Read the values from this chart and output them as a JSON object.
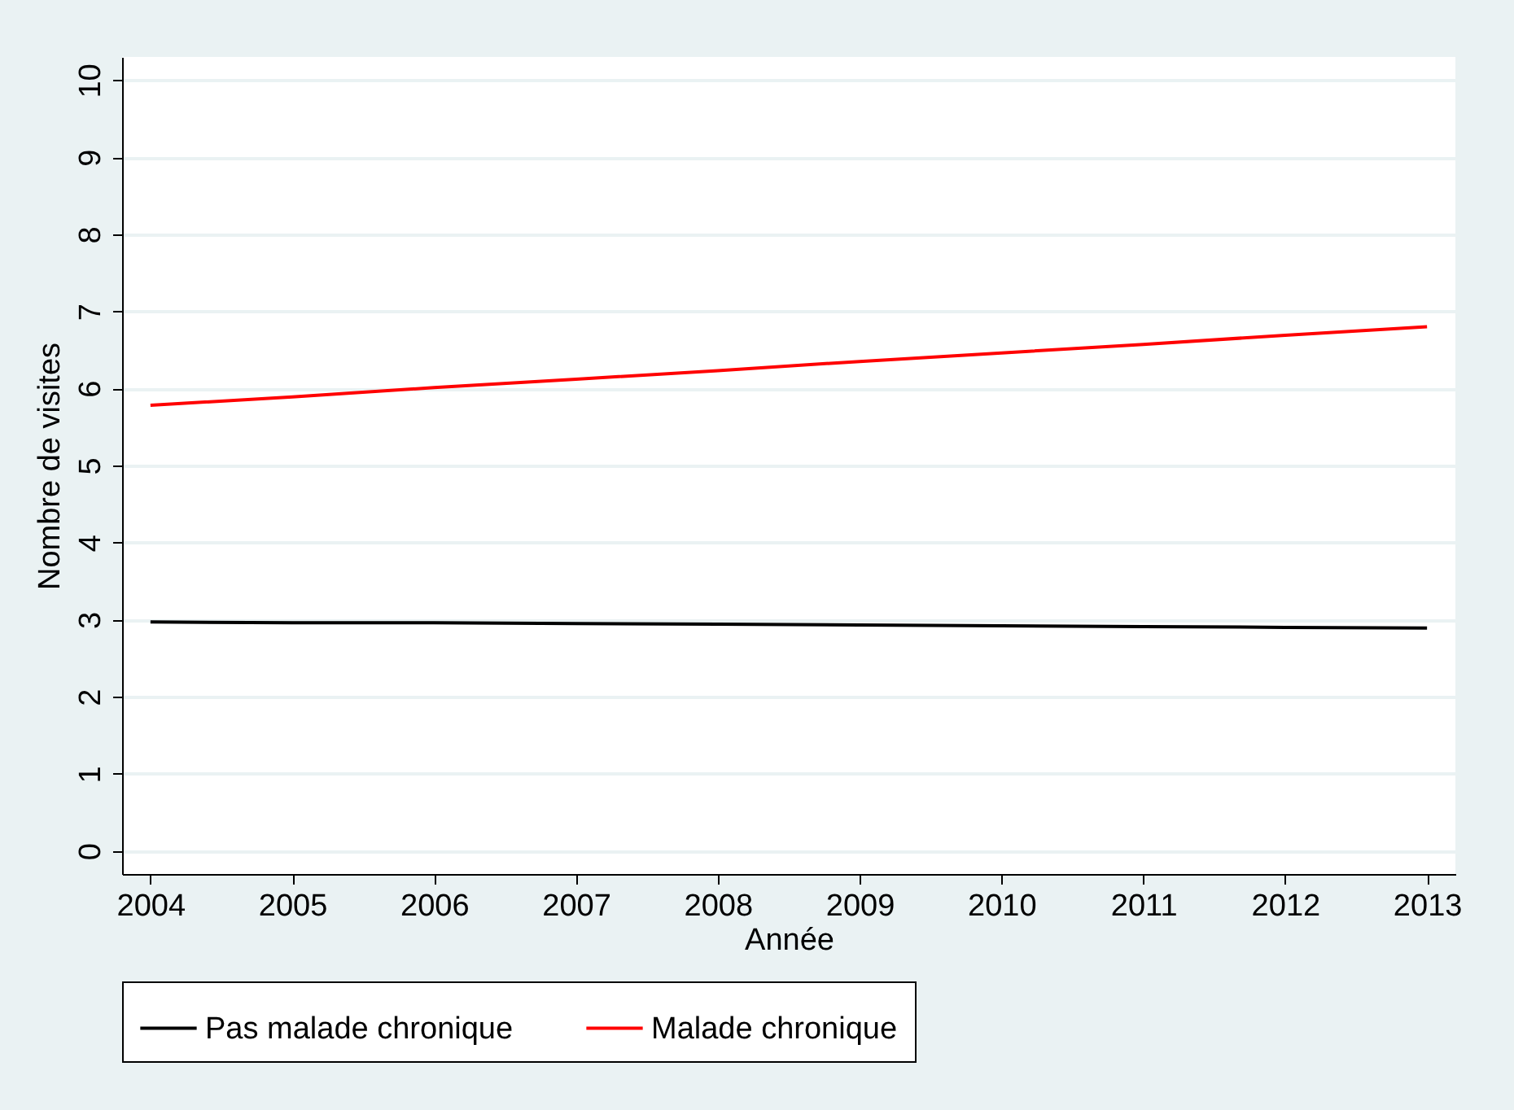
{
  "chart_data": {
    "type": "line",
    "xlabel": "Année",
    "ylabel": "Nombre de visites",
    "x": [
      2004,
      2005,
      2006,
      2007,
      2008,
      2009,
      2010,
      2011,
      2012,
      2013
    ],
    "series": [
      {
        "name": "Pas malade chronique",
        "color": "#000000",
        "values": [
          2.97,
          2.96,
          2.96,
          2.95,
          2.94,
          2.93,
          2.92,
          2.91,
          2.9,
          2.89
        ]
      },
      {
        "name": "Malade chronique",
        "color": "#ff0000",
        "values": [
          5.78,
          5.89,
          6.01,
          6.12,
          6.23,
          6.35,
          6.46,
          6.57,
          6.69,
          6.8
        ]
      }
    ],
    "xlim": [
      2003.8,
      2013.2
    ],
    "xticks": [
      2004,
      2005,
      2006,
      2007,
      2008,
      2009,
      2010,
      2011,
      2012,
      2013
    ],
    "ylim": [
      -0.3,
      10.3
    ],
    "yticks": [
      0,
      1,
      2,
      3,
      4,
      5,
      6,
      7,
      8,
      9,
      10
    ],
    "grid": "y",
    "legend": "bottom",
    "marker": "none",
    "line_style": "solid"
  }
}
